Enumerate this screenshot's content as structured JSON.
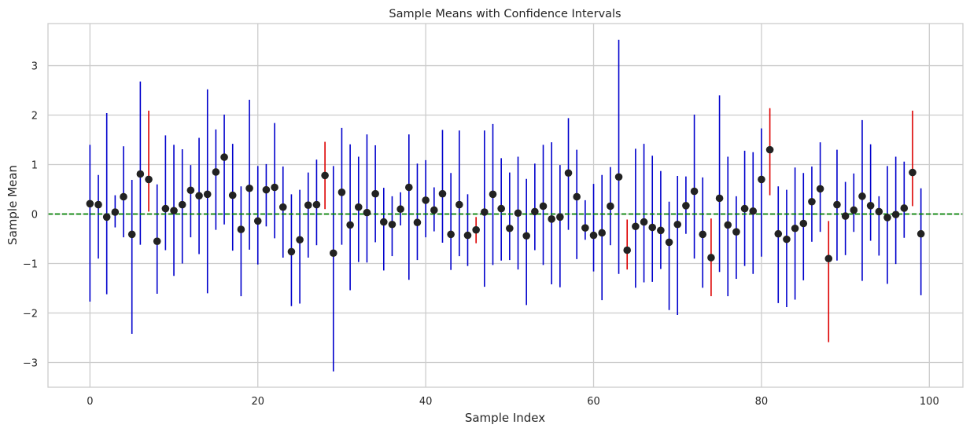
{
  "chart_data": {
    "type": "scatter",
    "title": "Sample Means with Confidence Intervals",
    "xlabel": "Sample Index",
    "ylabel": "Sample Mean",
    "xlim": [
      -5,
      104
    ],
    "ylim": [
      -3.5,
      3.85
    ],
    "x_ticks": [
      0,
      20,
      40,
      60,
      80,
      100
    ],
    "y_ticks": [
      -3,
      -2,
      -1,
      0,
      1,
      2,
      3
    ],
    "grid": true,
    "reference_line": {
      "y": 0,
      "color": "#008000",
      "style": "dashed"
    },
    "colors": {
      "covers_zero": "#0000cc",
      "misses_zero": "#dd0000",
      "point": "#222222",
      "grid": "#cccccc",
      "frame": "#cccccc"
    },
    "series": [
      {
        "x": [
          0,
          1,
          2,
          3,
          4,
          5,
          6,
          7,
          8,
          9,
          10,
          11,
          12,
          13,
          14,
          15,
          16,
          17,
          18,
          19,
          20,
          21,
          22,
          23,
          24,
          25,
          26,
          27,
          28,
          29,
          30,
          31,
          32,
          33,
          34,
          35,
          36,
          37,
          38,
          39,
          40,
          41,
          42,
          43,
          44,
          45,
          46,
          47,
          48,
          49,
          50,
          51,
          52,
          53,
          54,
          55,
          56,
          57,
          58,
          59,
          60,
          61,
          62,
          63,
          64,
          65,
          66,
          67,
          68,
          69,
          70,
          71,
          72,
          73,
          74,
          75,
          76,
          77,
          78,
          79,
          80,
          81,
          82,
          83,
          84,
          85,
          86,
          87,
          88,
          89,
          90,
          91,
          92,
          93,
          94,
          95,
          96,
          97,
          98,
          99
        ],
        "means": [
          0.21,
          0.19,
          -0.06,
          0.04,
          0.35,
          -0.41,
          0.81,
          0.7,
          -0.55,
          0.11,
          0.07,
          0.19,
          0.48,
          0.37,
          0.4,
          0.85,
          1.15,
          0.38,
          -0.31,
          0.52,
          -0.14,
          0.49,
          0.54,
          0.14,
          -0.76,
          -0.52,
          0.18,
          0.19,
          0.78,
          -0.79,
          0.44,
          -0.22,
          0.14,
          0.03,
          0.41,
          -0.16,
          -0.21,
          0.1,
          0.54,
          -0.17,
          0.28,
          0.08,
          0.41,
          -0.41,
          0.19,
          -0.43,
          -0.32,
          0.04,
          0.4,
          0.11,
          -0.29,
          0.02,
          -0.44,
          0.05,
          0.16,
          -0.1,
          -0.06,
          0.83,
          0.35,
          -0.28,
          -0.43,
          -0.38,
          0.16,
          0.75,
          -0.73,
          -0.25,
          -0.16,
          -0.27,
          -0.33,
          -0.57,
          -0.21,
          0.17,
          0.46,
          -0.41,
          -0.88,
          0.32,
          -0.22,
          -0.36,
          0.11,
          0.06,
          0.7,
          1.3,
          -0.4,
          -0.51,
          -0.29,
          -0.19,
          0.25,
          0.51,
          -0.9,
          0.19,
          -0.04,
          0.08,
          0.36,
          0.17,
          0.05,
          -0.07,
          -0.01,
          0.12,
          0.84,
          -0.4
        ],
        "ci_lower": [
          -1.77,
          -0.9,
          -1.62,
          -0.27,
          -0.47,
          -2.42,
          -0.62,
          0.05,
          -1.61,
          -0.73,
          -1.25,
          -1.0,
          -0.47,
          -0.81,
          -1.6,
          -0.32,
          -0.21,
          -0.74,
          -1.66,
          -0.72,
          -1.02,
          -0.25,
          -0.49,
          -0.88,
          -1.86,
          -1.81,
          -0.88,
          -0.63,
          0.1,
          -3.18,
          -0.62,
          -1.54,
          -0.97,
          -0.98,
          -0.57,
          -1.14,
          -0.85,
          -0.23,
          -1.33,
          -0.93,
          -0.47,
          -0.35,
          -0.58,
          -1.13,
          -0.85,
          -1.05,
          -0.59,
          -1.47,
          -1.03,
          -0.94,
          -0.93,
          -1.12,
          -1.84,
          -0.73,
          -1.03,
          -1.42,
          -1.48,
          -0.32,
          -0.91,
          -0.52,
          -1.16,
          -1.74,
          -0.63,
          -1.21,
          -1.12,
          -1.49,
          -1.38,
          -1.37,
          -1.11,
          -1.94,
          -2.04,
          -0.4,
          -0.9,
          -1.49,
          -1.66,
          -1.17,
          -1.66,
          -1.31,
          -1.05,
          -1.21,
          -0.86,
          0.38,
          -1.8,
          -1.88,
          -1.73,
          -1.34,
          -0.56,
          -0.36,
          -2.59,
          -0.94,
          -0.83,
          -0.36,
          -1.35,
          -0.54,
          -0.84,
          -1.41,
          -1.01,
          -0.48,
          0.16,
          -1.64
        ],
        "ci_upper": [
          1.4,
          0.79,
          2.04,
          0.38,
          1.37,
          0.69,
          2.68,
          2.09,
          0.6,
          1.59,
          1.4,
          1.31,
          0.99,
          1.54,
          2.52,
          1.71,
          2.01,
          1.42,
          0.56,
          2.31,
          0.97,
          1.01,
          1.84,
          0.96,
          0.4,
          0.49,
          0.84,
          1.1,
          1.46,
          0.97,
          1.74,
          1.41,
          1.16,
          1.61,
          1.39,
          0.53,
          0.36,
          0.44,
          1.61,
          1.02,
          1.09,
          0.54,
          1.7,
          0.83,
          1.69,
          0.4,
          -0.06,
          1.69,
          1.82,
          1.13,
          0.84,
          1.16,
          0.71,
          1.02,
          1.4,
          1.45,
          0.99,
          1.94,
          1.3,
          0.28,
          0.61,
          0.79,
          0.95,
          3.52,
          -0.11,
          1.32,
          1.42,
          1.18,
          0.87,
          0.25,
          0.77,
          0.76,
          2.01,
          0.74,
          -0.09,
          2.4,
          1.16,
          0.36,
          1.28,
          1.25,
          1.73,
          2.14,
          0.56,
          0.49,
          0.94,
          0.83,
          0.96,
          1.45,
          -0.14,
          1.3,
          0.65,
          0.82,
          1.9,
          1.41,
          0.36,
          0.97,
          1.16,
          1.06,
          2.09,
          0.52
        ]
      }
    ]
  }
}
